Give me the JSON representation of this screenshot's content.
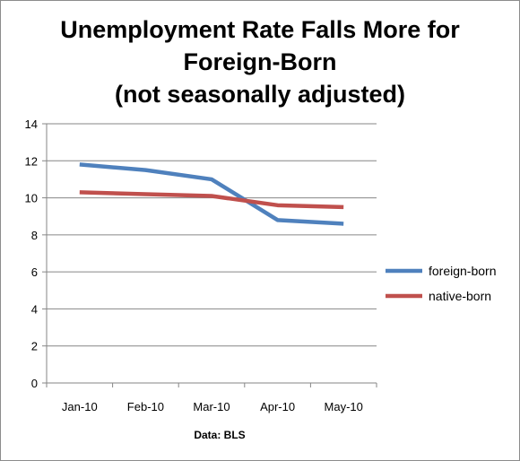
{
  "chart_data": {
    "type": "line",
    "title_lines": [
      "Unemployment Rate Falls More for",
      "Foreign-Born",
      "(not seasonally adjusted)"
    ],
    "xlabel": "Data: BLS",
    "ylabel": "",
    "categories": [
      "Jan-10",
      "Feb-10",
      "Mar-10",
      "Apr-10",
      "May-10"
    ],
    "series": [
      {
        "name": "foreign-born",
        "color": "#4f81bd",
        "values": [
          11.8,
          11.5,
          11.0,
          8.8,
          8.6
        ]
      },
      {
        "name": "native-born",
        "color": "#c0504d",
        "values": [
          10.3,
          10.2,
          10.1,
          9.6,
          9.5
        ]
      }
    ],
    "ylim": [
      0,
      14
    ],
    "yticks": [
      0,
      2,
      4,
      6,
      8,
      10,
      12,
      14
    ],
    "grid": true,
    "legend": "right"
  }
}
